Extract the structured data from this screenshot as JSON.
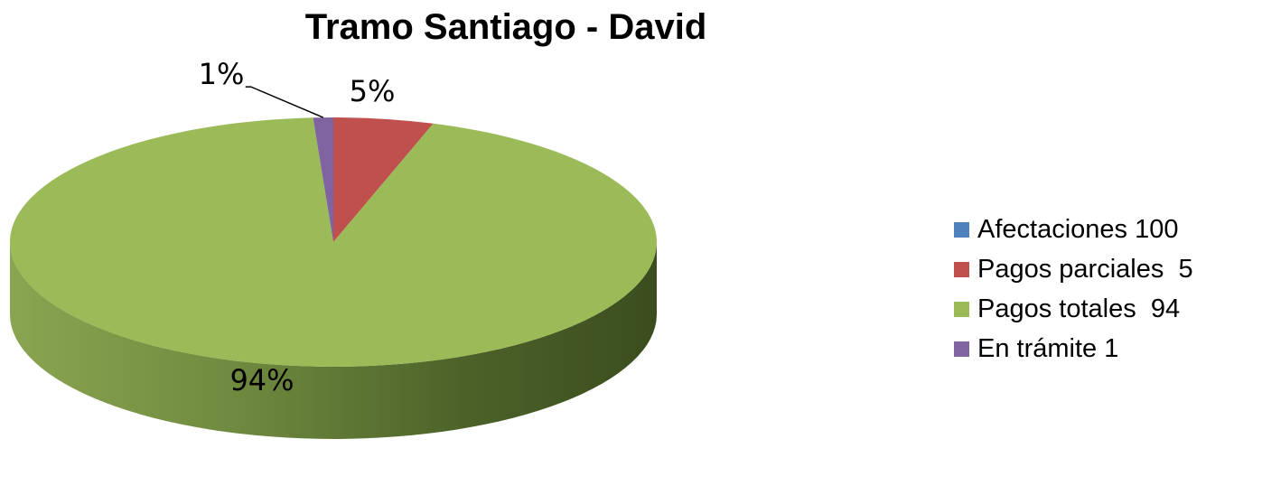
{
  "chart_data": {
    "type": "pie",
    "title": "Tramo Santiago - David",
    "slices": [
      {
        "label": "Afectaciones 100",
        "value": 0,
        "color": "#4F81BD",
        "data_label": ""
      },
      {
        "label": "Pagos parciales  5",
        "value": 5,
        "color": "#C0504D",
        "data_label": "5%"
      },
      {
        "label": "Pagos totales  94",
        "value": 94,
        "color": "#9BBB59",
        "data_label": "94%"
      },
      {
        "label": "En trámite 1",
        "value": 1,
        "color": "#8064A2",
        "data_label": "1%"
      }
    ],
    "legend_position": "right",
    "style": "3d"
  }
}
